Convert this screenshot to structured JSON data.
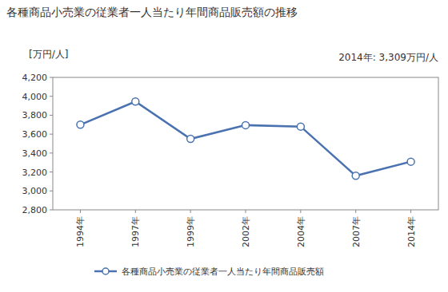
{
  "chart_data": {
    "type": "line",
    "title": "各種商品小売業の従業者一人当たり年間商品販売額の推移",
    "y_label": "[万円/人]",
    "annotation": "2014年: 3,309万円/人",
    "categories": [
      "1994年",
      "1997年",
      "1999年",
      "2002年",
      "2004年",
      "2007年",
      "2014年"
    ],
    "series": [
      {
        "name": "各種商品小売業の従業者一人当たり年間商品販売額",
        "color": "#4a72b0",
        "marker": "circle",
        "values": [
          3700,
          3945,
          3550,
          3695,
          3680,
          3160,
          3309
        ]
      }
    ],
    "ylim": [
      2800,
      4200
    ],
    "yticks": [
      {
        "value": 2800,
        "label": "2,800"
      },
      {
        "value": 3000,
        "label": "3,000"
      },
      {
        "value": 3200,
        "label": "3,200"
      },
      {
        "value": 3400,
        "label": "3,400"
      },
      {
        "value": 3600,
        "label": "3,600"
      },
      {
        "value": 3800,
        "label": "3,800"
      },
      {
        "value": 4000,
        "label": "4,000"
      },
      {
        "value": 4200,
        "label": "4,200"
      }
    ],
    "grid": false,
    "legend": "bottom"
  }
}
